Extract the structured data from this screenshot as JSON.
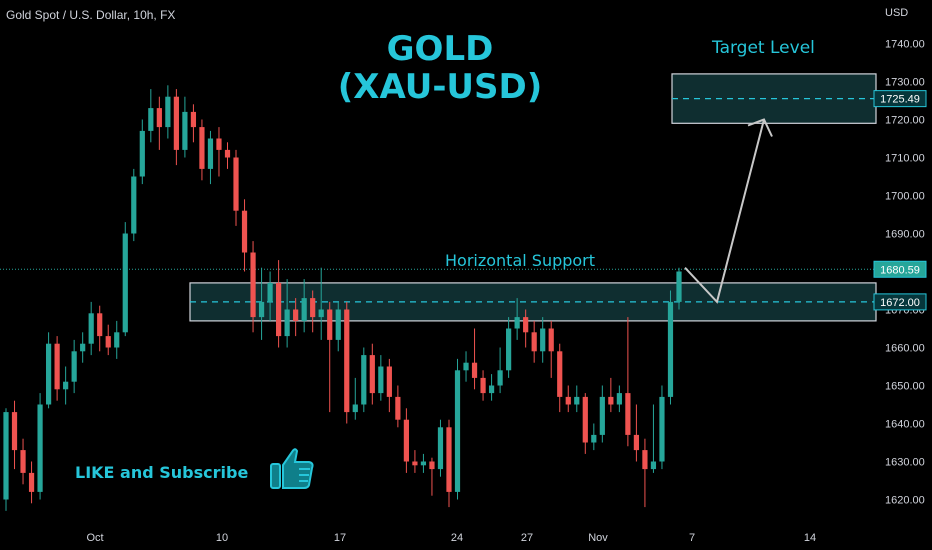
{
  "header": {
    "symbol": "Gold Spot / U.S. Dollar, 10h, FX",
    "currency": "USD"
  },
  "annotations": {
    "title_line1": "GOLD",
    "title_line2": "(XAU-USD)",
    "target_label": "Target Level",
    "support_label": "Horizontal Support",
    "cta": "LIKE and Subscribe",
    "thumb_icon": "thumbs-up-icon"
  },
  "colors": {
    "background": "#000000",
    "up": "#26a69a",
    "down": "#ef5350",
    "accent": "#26c6da",
    "zone_fill": "#0f2e30",
    "axis_text": "#d1d4dc"
  },
  "chart_data": {
    "type": "candlestick",
    "title": "GOLD (XAU-USD)",
    "symbol": "Gold Spot / U.S. Dollar, 10h, FX",
    "ylabel": "USD",
    "ylim": [
      1615,
      1750
    ],
    "yticks": [
      1620,
      1630,
      1640,
      1650,
      1660,
      1670,
      1680,
      1690,
      1700,
      1710,
      1720,
      1730,
      1740
    ],
    "xticks": [
      "Oct",
      "10",
      "17",
      "24",
      "27",
      "Nov",
      "7",
      "14"
    ],
    "last_price": "1680.59",
    "price_labels": [
      "1725.49",
      "1672.00",
      "1680.59"
    ],
    "support_zone": [
      1667,
      1677
    ],
    "target_zone": [
      1719,
      1732
    ],
    "target_price": 1725.49,
    "support_price": 1672.0,
    "projection": [
      1681,
      1672,
      1720
    ],
    "candles": [
      [
        1620,
        1643,
        1617,
        1644
      ],
      [
        1643,
        1633,
        1628,
        1646
      ],
      [
        1633,
        1627,
        1624,
        1636
      ],
      [
        1627,
        1622,
        1619,
        1630
      ],
      [
        1622,
        1645,
        1620,
        1648
      ],
      [
        1645,
        1661,
        1644,
        1664
      ],
      [
        1661,
        1649,
        1646,
        1663
      ],
      [
        1649,
        1651,
        1645,
        1655
      ],
      [
        1651,
        1659,
        1648,
        1662
      ],
      [
        1659,
        1661,
        1656,
        1664
      ],
      [
        1661,
        1669,
        1658,
        1672
      ],
      [
        1669,
        1663,
        1659,
        1671
      ],
      [
        1663,
        1660,
        1658,
        1666
      ],
      [
        1660,
        1664,
        1657,
        1667
      ],
      [
        1664,
        1690,
        1663,
        1693
      ],
      [
        1690,
        1705,
        1688,
        1707
      ],
      [
        1705,
        1717,
        1703,
        1720
      ],
      [
        1717,
        1723,
        1714,
        1728
      ],
      [
        1723,
        1718,
        1712,
        1726
      ],
      [
        1718,
        1726,
        1715,
        1729
      ],
      [
        1726,
        1712,
        1708,
        1728
      ],
      [
        1712,
        1722,
        1710,
        1726
      ],
      [
        1722,
        1718,
        1714,
        1724
      ],
      [
        1718,
        1707,
        1704,
        1720
      ],
      [
        1707,
        1715,
        1703,
        1717
      ],
      [
        1715,
        1712,
        1705,
        1718
      ],
      [
        1712,
        1710,
        1707,
        1714
      ],
      [
        1710,
        1696,
        1692,
        1712
      ],
      [
        1696,
        1685,
        1680,
        1699
      ],
      [
        1685,
        1668,
        1664,
        1688
      ],
      [
        1668,
        1672,
        1662,
        1681
      ],
      [
        1672,
        1677,
        1667,
        1680
      ],
      [
        1677,
        1663,
        1660,
        1683
      ],
      [
        1663,
        1670,
        1660,
        1678
      ],
      [
        1670,
        1667,
        1663,
        1673
      ],
      [
        1667,
        1673,
        1664,
        1678
      ],
      [
        1673,
        1668,
        1664,
        1675
      ],
      [
        1668,
        1670,
        1662,
        1681
      ],
      [
        1670,
        1662,
        1643,
        1672
      ],
      [
        1662,
        1670,
        1659,
        1672
      ],
      [
        1670,
        1643,
        1640,
        1672
      ],
      [
        1643,
        1645,
        1641,
        1652
      ],
      [
        1645,
        1658,
        1643,
        1660
      ],
      [
        1658,
        1648,
        1645,
        1661
      ],
      [
        1648,
        1655,
        1646,
        1658
      ],
      [
        1655,
        1647,
        1643,
        1657
      ],
      [
        1647,
        1641,
        1639,
        1650
      ],
      [
        1641,
        1630,
        1627,
        1644
      ],
      [
        1630,
        1629,
        1627,
        1633
      ],
      [
        1629,
        1630,
        1627,
        1632
      ],
      [
        1630,
        1628,
        1621,
        1631
      ],
      [
        1628,
        1639,
        1626,
        1641
      ],
      [
        1639,
        1622,
        1618,
        1641
      ],
      [
        1622,
        1654,
        1620,
        1657
      ],
      [
        1654,
        1656,
        1651,
        1659
      ],
      [
        1656,
        1652,
        1649,
        1665
      ],
      [
        1652,
        1648,
        1646,
        1654
      ],
      [
        1648,
        1650,
        1646,
        1653
      ],
      [
        1650,
        1654,
        1648,
        1660
      ],
      [
        1654,
        1665,
        1652,
        1668
      ],
      [
        1665,
        1668,
        1662,
        1673
      ],
      [
        1668,
        1664,
        1660,
        1670
      ],
      [
        1664,
        1659,
        1656,
        1667
      ],
      [
        1659,
        1665,
        1656,
        1668
      ],
      [
        1665,
        1659,
        1652,
        1667
      ],
      [
        1659,
        1647,
        1643,
        1661
      ],
      [
        1647,
        1645,
        1643,
        1650
      ],
      [
        1645,
        1647,
        1643,
        1650
      ],
      [
        1647,
        1635,
        1632,
        1648
      ],
      [
        1635,
        1637,
        1633,
        1640
      ],
      [
        1637,
        1647,
        1635,
        1650
      ],
      [
        1647,
        1645,
        1643,
        1652
      ],
      [
        1645,
        1648,
        1643,
        1650
      ],
      [
        1648,
        1637,
        1634,
        1668
      ],
      [
        1637,
        1633,
        1630,
        1645
      ],
      [
        1633,
        1628,
        1618,
        1636
      ],
      [
        1628,
        1630,
        1627,
        1645
      ],
      [
        1630,
        1647,
        1628,
        1650
      ],
      [
        1647,
        1672,
        1645,
        1675
      ],
      [
        1672,
        1680,
        1670,
        1681
      ]
    ]
  }
}
